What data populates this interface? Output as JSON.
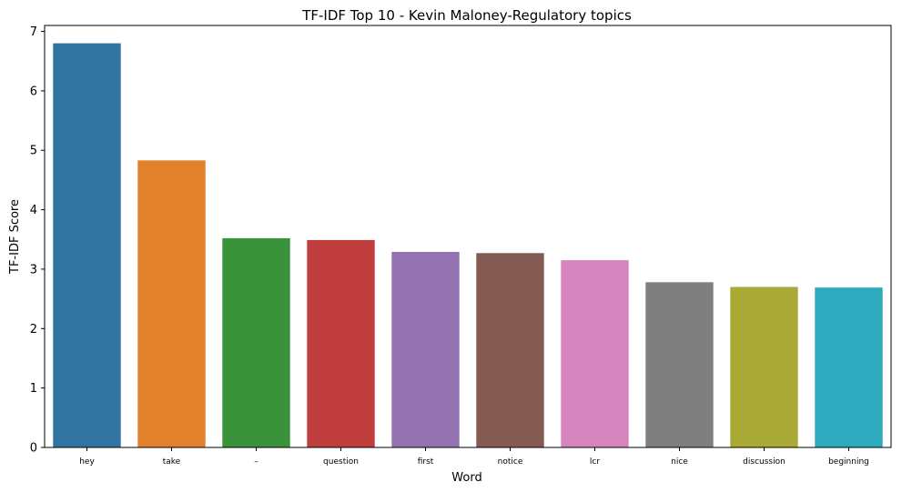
{
  "chart_data": {
    "type": "bar",
    "title": "TF-IDF Top 10 - Kevin Maloney-Regulatory topics",
    "xlabel": "Word",
    "ylabel": "TF-IDF Score",
    "categories": [
      "hey",
      "take",
      "–",
      "question",
      "first",
      "notice",
      "lcr",
      "nice",
      "discussion",
      "beginning"
    ],
    "values": [
      6.8,
      4.83,
      3.52,
      3.49,
      3.29,
      3.27,
      3.15,
      2.78,
      2.7,
      2.69
    ],
    "colors": [
      "#3274a1",
      "#e1812c",
      "#3a923a",
      "#c03d3e",
      "#9372b2",
      "#845b53",
      "#d684bd",
      "#7f7f7f",
      "#a9aa35",
      "#2eaabf"
    ],
    "ylim": [
      0,
      7.1
    ],
    "yticks": [
      0,
      1,
      2,
      3,
      4,
      5,
      6,
      7
    ],
    "grid": false,
    "legend": "none"
  }
}
